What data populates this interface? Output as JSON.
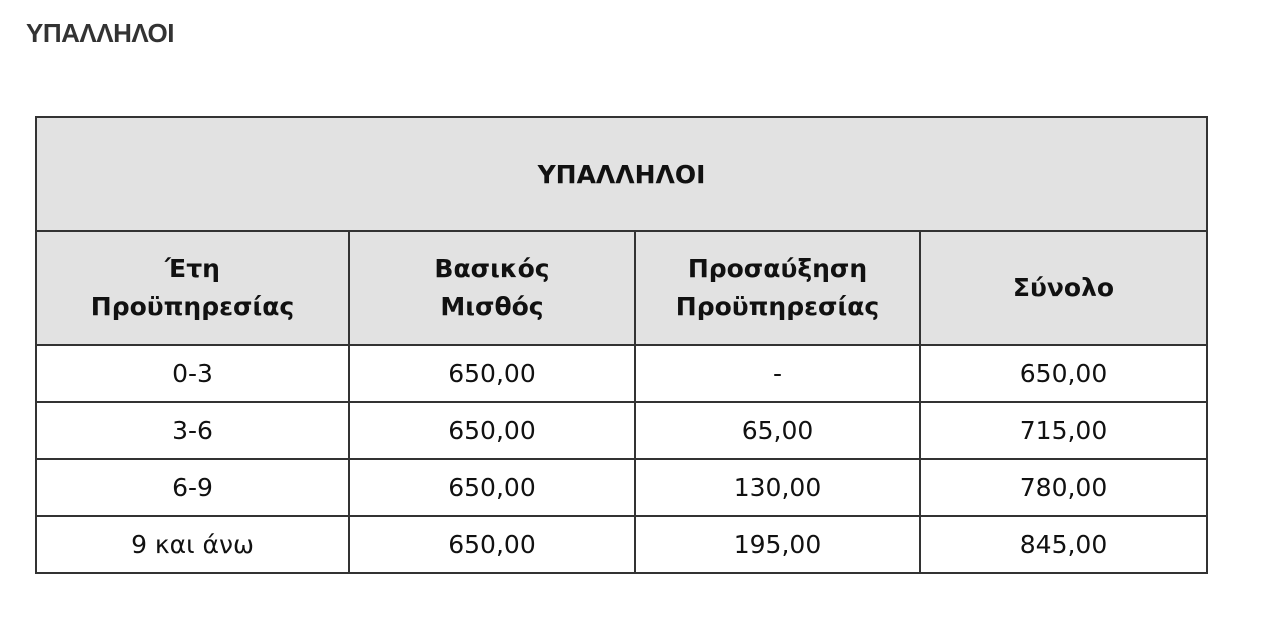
{
  "page_title": "ΥΠΑΛΛΗΛΟΙ",
  "table": {
    "title": "ΥΠΑΛΛΗΛΟΙ",
    "headers": [
      [
        "Έτη",
        "Προϋπηρεσίας"
      ],
      [
        "Βασικός",
        "Μισθός"
      ],
      [
        "Προσαύξηση",
        "Προϋπηρεσίας"
      ],
      [
        "Σύνολο"
      ]
    ],
    "rows": [
      [
        "0-3",
        "650,00",
        "-",
        "650,00"
      ],
      [
        "3-6",
        "650,00",
        "65,00",
        "715,00"
      ],
      [
        "6-9",
        "650,00",
        "130,00",
        "780,00"
      ],
      [
        "9 και άνω",
        "650,00",
        "195,00",
        "845,00"
      ]
    ],
    "header_bg": "#e2e2e2"
  }
}
